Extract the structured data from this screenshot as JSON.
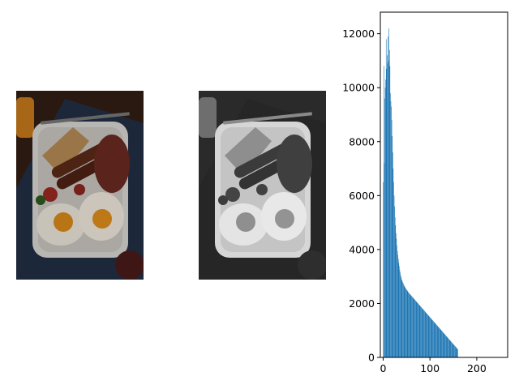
{
  "figure": {
    "panels": [
      {
        "name": "color-photo",
        "kind": "image",
        "subject": "full breakfast plate: fried eggs, sausages, bacon, toast, tomatoes, beans"
      },
      {
        "name": "grayscale-photo",
        "kind": "image",
        "subject": "grayscale version of the breakfast plate"
      },
      {
        "name": "histogram",
        "kind": "chart"
      }
    ]
  },
  "colors": {
    "bar": "#1f77b4",
    "axis": "#000000"
  },
  "chart_data": {
    "type": "bar",
    "title": "",
    "xlabel": "",
    "ylabel": "",
    "xlim": [
      -6,
      266
    ],
    "ylim": [
      0,
      12800
    ],
    "xticks": [
      0,
      100,
      200
    ],
    "xtick_labels": [
      "0",
      "100",
      "200"
    ],
    "yticks": [
      0,
      2000,
      4000,
      6000,
      8000,
      10000,
      12000
    ],
    "ytick_labels": [
      "0",
      "2000",
      "4000",
      "6000",
      "8000",
      "10000",
      "12000"
    ],
    "bin_width": 1,
    "grid": false,
    "x": [
      0,
      1,
      2,
      3,
      4,
      5,
      6,
      7,
      8,
      9,
      10,
      11,
      12,
      13,
      14,
      15,
      16,
      17,
      18,
      19,
      20,
      21,
      22,
      23,
      24,
      25,
      26,
      27,
      28,
      29,
      30,
      31,
      32,
      33,
      34,
      35,
      36,
      37,
      38,
      39,
      40,
      41,
      42,
      43,
      44,
      45,
      46,
      47,
      48,
      49,
      50,
      51,
      52,
      53,
      54,
      55,
      56,
      57,
      58,
      59,
      60,
      61,
      62,
      63,
      64,
      65,
      66,
      67,
      68,
      69,
      70,
      71,
      72,
      73,
      74,
      75,
      76,
      77,
      78,
      79,
      80,
      81,
      82,
      83,
      84,
      85,
      86,
      87,
      88,
      89,
      90,
      91,
      92,
      93,
      94,
      95,
      96,
      97,
      98,
      99,
      100,
      101,
      102,
      103,
      104,
      105,
      106,
      107,
      108,
      109,
      110,
      111,
      112,
      113,
      114,
      115,
      116,
      117,
      118,
      119,
      120,
      121,
      122,
      123,
      124,
      125,
      126,
      127,
      128,
      129,
      130,
      131,
      132,
      133,
      134,
      135,
      136,
      137,
      138,
      139,
      140,
      141,
      142,
      143,
      144,
      145,
      146,
      147,
      148,
      149,
      150,
      151,
      152,
      153,
      154,
      155,
      156,
      157,
      158,
      159
    ],
    "values": [
      6500,
      10800,
      7200,
      9600,
      10000,
      10300,
      11800,
      10700,
      11200,
      10900,
      11900,
      11000,
      12200,
      11400,
      10800,
      9800,
      9500,
      9300,
      8800,
      8200,
      7600,
      7000,
      6500,
      6000,
      5600,
      5200,
      4900,
      4600,
      4400,
      4150,
      3950,
      3800,
      3650,
      3500,
      3380,
      3250,
      3150,
      3050,
      2980,
      2900,
      2850,
      2800,
      2760,
      2720,
      2680,
      2640,
      2610,
      2580,
      2550,
      2530,
      2500,
      2480,
      2450,
      2420,
      2400,
      2380,
      2360,
      2340,
      2320,
      2300,
      2280,
      2260,
      2240,
      2220,
      2200,
      2180,
      2160,
      2140,
      2120,
      2100,
      2080,
      2060,
      2040,
      2020,
      2000,
      1980,
      1960,
      1940,
      1920,
      1900,
      1880,
      1860,
      1840,
      1820,
      1800,
      1780,
      1760,
      1740,
      1720,
      1700,
      1680,
      1660,
      1640,
      1620,
      1600,
      1580,
      1560,
      1540,
      1520,
      1500,
      1480,
      1460,
      1440,
      1420,
      1400,
      1380,
      1360,
      1340,
      1320,
      1300,
      1280,
      1260,
      1240,
      1220,
      1200,
      1180,
      1160,
      1140,
      1120,
      1100,
      1080,
      1060,
      1040,
      1020,
      1000,
      980,
      960,
      940,
      920,
      900,
      880,
      860,
      840,
      820,
      800,
      780,
      760,
      740,
      720,
      700,
      680,
      660,
      640,
      620,
      600,
      580,
      560,
      540,
      520,
      500,
      480,
      460,
      440,
      420,
      400,
      380,
      360,
      340,
      320,
      300
    ]
  }
}
